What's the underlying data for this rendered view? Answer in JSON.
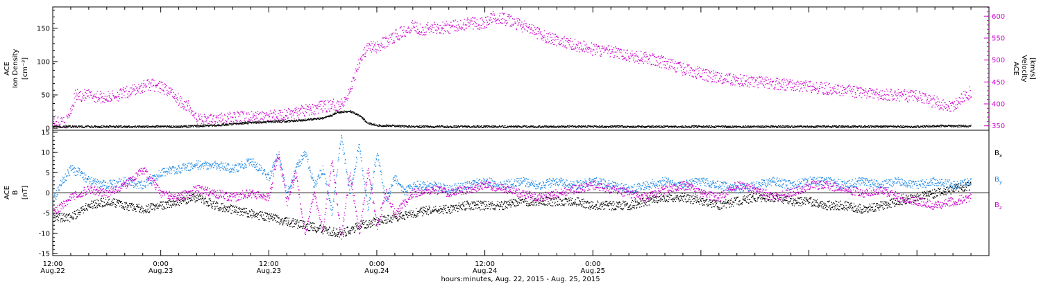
{
  "chart_data": [
    {
      "id": "top",
      "type": "scatter",
      "xlim": [
        0,
        104
      ],
      "left_axis": {
        "label_lines": [
          "ACE",
          "Ion Density",
          "[cm⁻³]"
        ],
        "ylim": [
          -3,
          182
        ],
        "ticks": [
          0,
          50,
          100,
          150
        ],
        "tick_labels": [
          "0",
          "50",
          "100",
          "150"
        ]
      },
      "right_axis": {
        "label_lines": [
          "ACE",
          "Velocity",
          "[km/s]"
        ],
        "ylim": [
          340,
          621
        ],
        "ticks": [
          350,
          400,
          450,
          500,
          550,
          600
        ],
        "tick_labels": [
          "350",
          "400",
          "450",
          "500",
          "550",
          "600"
        ],
        "color": "#cc00cc"
      },
      "series": [
        {
          "key": "density",
          "axis": "left",
          "color": "#000000",
          "x": [
            0,
            2,
            4,
            6,
            8,
            10,
            12,
            14,
            16,
            18,
            20,
            22,
            24,
            26,
            28,
            30,
            31,
            31.5,
            32,
            33,
            34,
            35,
            36,
            38,
            40,
            42,
            44,
            46,
            48,
            50,
            52,
            54,
            56,
            58,
            60,
            62,
            64,
            66,
            68,
            70,
            72,
            74,
            76,
            78,
            80,
            82,
            84,
            86,
            88,
            90,
            92,
            94,
            96,
            98,
            100,
            102
          ],
          "y": [
            3,
            3,
            3,
            3,
            3,
            3,
            3,
            3,
            4,
            5,
            7,
            9,
            10,
            11,
            13,
            16,
            20,
            24,
            25,
            26,
            20,
            8,
            5,
            4,
            3,
            3,
            3,
            3,
            3,
            3,
            3,
            3,
            3,
            3,
            3,
            3,
            3,
            3,
            3,
            3,
            3,
            3,
            3,
            3,
            3,
            3,
            3,
            3,
            3,
            3,
            3,
            3,
            3,
            4,
            4,
            4
          ]
        },
        {
          "key": "velocity",
          "axis": "right",
          "color": "#cc00cc",
          "x": [
            0,
            1.5,
            2.5,
            4,
            6,
            8,
            10,
            10.5,
            11,
            13,
            14,
            15,
            16,
            18,
            20,
            22,
            24,
            26,
            28,
            30,
            32,
            33,
            34,
            35,
            36,
            38,
            40,
            41,
            42,
            44,
            46,
            48,
            49,
            50,
            52,
            54,
            56,
            58,
            60,
            62,
            64,
            66,
            68,
            70,
            72,
            74,
            76,
            78,
            80,
            82,
            84,
            86,
            88,
            90,
            92,
            94,
            96,
            98,
            100,
            102
          ],
          "y": [
            360,
            360,
            420,
            420,
            415,
            425,
            440,
            445,
            445,
            430,
            410,
            395,
            365,
            365,
            370,
            370,
            372,
            378,
            385,
            395,
            400,
            430,
            500,
            530,
            530,
            555,
            580,
            570,
            575,
            575,
            585,
            585,
            600,
            595,
            580,
            560,
            545,
            535,
            525,
            520,
            510,
            505,
            495,
            480,
            470,
            460,
            455,
            450,
            448,
            445,
            440,
            435,
            432,
            425,
            422,
            420,
            418,
            405,
            395,
            430
          ]
        }
      ]
    },
    {
      "id": "bottom",
      "type": "scatter",
      "xlim": [
        0,
        104
      ],
      "left_axis": {
        "label_lines": [
          "ACE",
          "B",
          "[nT]"
        ],
        "ylim": [
          -15.5,
          15.5
        ],
        "ticks": [
          -15,
          -10,
          -5,
          0,
          5,
          10,
          15
        ],
        "tick_labels": [
          "-15",
          "-10",
          "-5",
          "0",
          "5",
          "10",
          "15"
        ]
      },
      "series": [
        {
          "name": "Bx",
          "color": "#000000",
          "x": [
            0,
            2,
            4,
            6,
            8,
            10,
            12,
            14,
            16,
            18,
            20,
            22,
            24,
            26,
            28,
            30,
            32,
            34,
            36,
            38,
            40,
            42,
            44,
            46,
            48,
            50,
            52,
            54,
            56,
            58,
            60,
            62,
            64,
            66,
            68,
            70,
            72,
            74,
            76,
            78,
            80,
            82,
            84,
            86,
            88,
            90,
            92,
            94,
            96,
            98,
            100,
            102
          ],
          "y": [
            -6,
            -6,
            -3,
            -2,
            -3,
            -4,
            -3,
            -2,
            -1,
            -3,
            -4,
            -5,
            -6,
            -7,
            -8,
            -9,
            -10,
            -8,
            -7,
            -6,
            -5,
            -4,
            -4,
            -3,
            -3,
            -3,
            -2,
            -2,
            -2,
            -2,
            -3,
            -3,
            -3,
            -2,
            -1,
            -1,
            -2,
            -3,
            -2,
            -1,
            -1,
            -2,
            -2,
            -3,
            -3,
            -4,
            -3,
            -2,
            -1,
            0,
            1,
            2
          ]
        },
        {
          "name": "By",
          "color": "#1e88e5",
          "x": [
            0,
            1,
            2,
            3,
            4,
            6,
            8,
            10,
            12,
            14,
            16,
            18,
            20,
            22,
            24,
            25,
            26,
            27,
            28,
            29,
            30,
            31,
            32,
            33,
            34,
            35,
            36,
            37,
            38,
            39,
            40,
            42,
            44,
            46,
            48,
            50,
            52,
            54,
            56,
            58,
            60,
            62,
            64,
            66,
            68,
            70,
            72,
            74,
            76,
            78,
            80,
            82,
            84,
            86,
            88,
            90,
            92,
            94,
            96,
            98,
            100,
            102
          ],
          "y": [
            -2,
            3,
            6,
            5,
            3,
            2,
            3,
            2,
            5,
            6,
            7,
            7,
            6,
            8,
            4,
            10,
            0,
            6,
            10,
            2,
            6,
            -5,
            14,
            0,
            12,
            -4,
            10,
            -2,
            4,
            0,
            2,
            2,
            1,
            2,
            3,
            2,
            3,
            2,
            3,
            2,
            3,
            2,
            1,
            2,
            3,
            2,
            3,
            2,
            1,
            2,
            3,
            2,
            3,
            3,
            2,
            3,
            2,
            3,
            2,
            3,
            2,
            3
          ]
        },
        {
          "name": "Bz",
          "color": "#cc00cc",
          "x": [
            0,
            2,
            4,
            6,
            8,
            10,
            12,
            14,
            16,
            18,
            20,
            22,
            24,
            25,
            26,
            27,
            28,
            29,
            30,
            31,
            32,
            33,
            34,
            35,
            36,
            37,
            38,
            40,
            42,
            44,
            46,
            48,
            50,
            52,
            54,
            56,
            58,
            60,
            62,
            64,
            66,
            68,
            70,
            72,
            74,
            76,
            78,
            80,
            82,
            84,
            86,
            88,
            90,
            92,
            94,
            96,
            98,
            100,
            102
          ],
          "y": [
            -5,
            -1,
            1,
            0,
            2,
            6,
            0,
            -1,
            1,
            0,
            -1,
            0,
            -1,
            10,
            -2,
            5,
            -10,
            0,
            -9,
            8,
            -11,
            5,
            -10,
            6,
            -8,
            0,
            -5,
            0,
            1,
            0,
            1,
            2,
            1,
            0,
            -1,
            0,
            1,
            2,
            1,
            0,
            -1,
            1,
            2,
            0,
            -1,
            2,
            1,
            -1,
            0,
            2,
            2,
            1,
            0,
            1,
            -1,
            -2,
            -3,
            -2,
            -1
          ]
        }
      ],
      "legend": {
        "placement": "right",
        "entries": [
          "Bx",
          "By",
          "Bz"
        ]
      }
    }
  ],
  "x_axis": {
    "major_ticks": [
      0,
      12,
      24,
      36,
      48,
      60,
      72,
      84,
      96
    ],
    "tick_labels": [
      [
        "12:00",
        "Aug.22"
      ],
      [
        "0:00",
        "Aug.23"
      ],
      [
        "12:00",
        "Aug.23"
      ],
      [
        "0:00",
        "Aug.24"
      ],
      [
        "12:00",
        "Aug.24"
      ],
      [
        "0:00",
        "Aug.25"
      ],
      [],
      [],
      []
    ],
    "title": "hours:minutes, Aug. 22, 2015 - Aug. 25, 2015"
  },
  "labels": {
    "bx_main": "B",
    "bx_sub": "x",
    "by_main": "B",
    "by_sub": "y",
    "bz_main": "B",
    "bz_sub": "z"
  },
  "colors": {
    "axes": "#000000",
    "magenta": "#cc00cc",
    "blue": "#1e88e5"
  }
}
